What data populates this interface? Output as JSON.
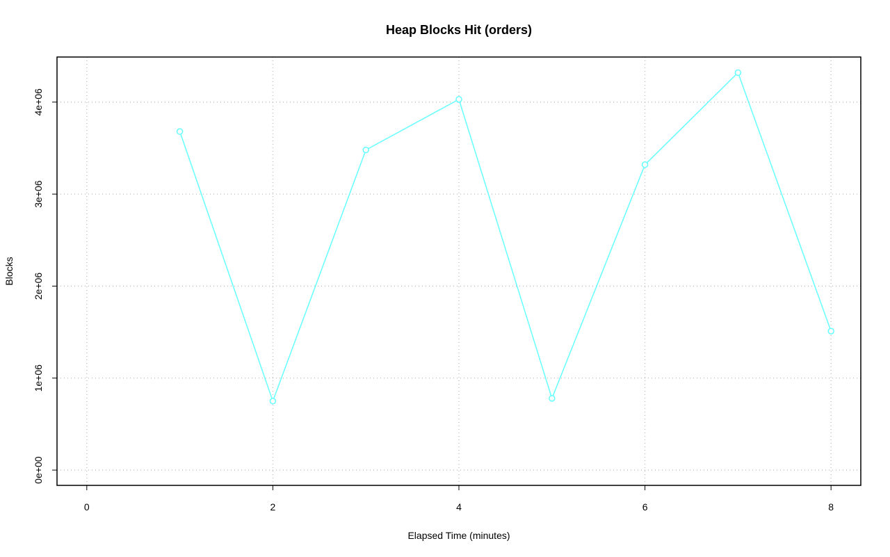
{
  "chart_data": {
    "type": "line",
    "title": "Heap Blocks Hit (orders)",
    "x_label": "Elapsed Time (minutes)",
    "y_label": "Blocks",
    "x": [
      1,
      2,
      3,
      4,
      5,
      6,
      7,
      8
    ],
    "values": [
      3680000,
      750000,
      3480000,
      4030000,
      780000,
      3320000,
      4320000,
      1510000
    ],
    "color": "#66ffff",
    "xlim": [
      -0.32,
      8.32
    ],
    "ylim": [
      -166000,
      4490000
    ],
    "xticks": [
      0,
      2,
      4,
      6,
      8
    ],
    "yticks": [
      {
        "value": 0,
        "label": "0e+00"
      },
      {
        "value": 1000000,
        "label": "1e+06"
      },
      {
        "value": 2000000,
        "label": "2e+06"
      },
      {
        "value": 3000000,
        "label": "3e+06"
      },
      {
        "value": 4000000,
        "label": "4e+06"
      }
    ],
    "grid": true
  }
}
